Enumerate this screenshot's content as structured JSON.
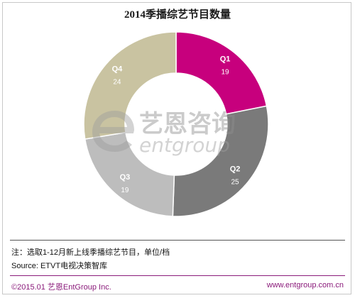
{
  "title": "2014季播综艺节目数量",
  "chart_data": {
    "type": "pie",
    "donut": true,
    "title": "2014季播综艺节目数量",
    "categories": [
      "Q1",
      "Q2",
      "Q3",
      "Q4"
    ],
    "values": [
      19,
      25,
      19,
      24
    ],
    "colors": [
      "#c7007d",
      "#7a7a7a",
      "#bdbdbd",
      "#c9c3a1"
    ],
    "start": "12 o'clock, clockwise"
  },
  "watermark": {
    "cn": "艺恩咨询",
    "en": "entgroup"
  },
  "notes": {
    "line1": "注：选取1-12月新上线季播综艺节目，单位/档",
    "line2": "Source: ETVT电视决策智库"
  },
  "footer": {
    "left": "©2015.01  艺恩EntGroup Inc.",
    "right": "www.entgroup.com.cn"
  }
}
